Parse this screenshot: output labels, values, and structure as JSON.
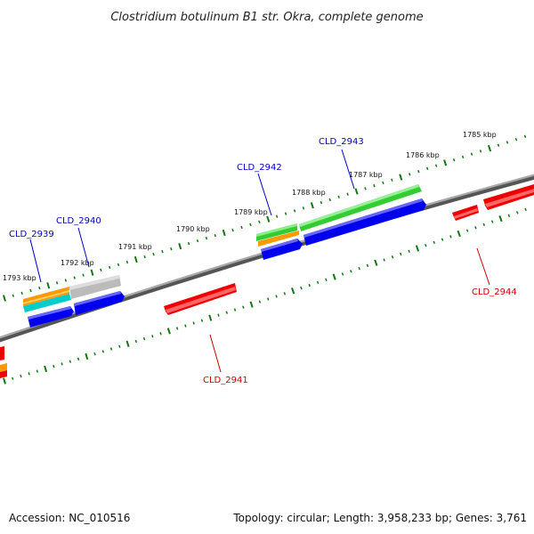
{
  "title": "Clostridium botulinum B1 str. Okra, complete genome",
  "footer": {
    "accession": "Accession: NC_010516",
    "summary": "Topology: circular; Length: 3,958,233 bp; Genes: 3,761"
  },
  "scale_labels": [
    "1785 kbp",
    "1786 kbp",
    "1787 kbp",
    "1788 kbp",
    "1789 kbp",
    "1790 kbp",
    "1791 kbp",
    "1792 kbp",
    "1793 kbp"
  ],
  "gene_labels": {
    "forward": [
      "CLD_2939",
      "CLD_2940",
      "CLD_2942",
      "CLD_2943"
    ],
    "reverse": [
      "CLD_2941",
      "CLD_2944"
    ]
  },
  "colors": {
    "forward_gene": "#0000ee",
    "reverse_gene": "#ee0000",
    "cds_green": "#33cc33",
    "cds_orange": "#ff9900",
    "cds_cyan": "#00cccc",
    "cds_grey": "#bbbbbb",
    "backbone": "#888888",
    "ticks": "#117711"
  }
}
